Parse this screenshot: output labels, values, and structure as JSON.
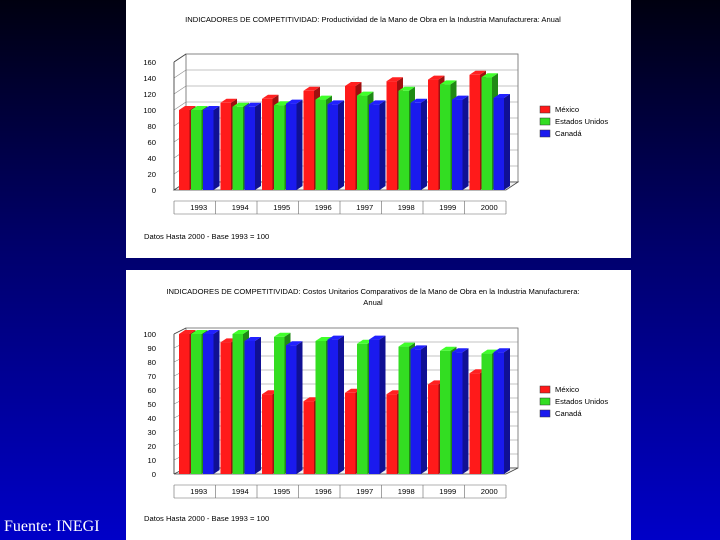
{
  "source_label": "Fuente: INEGI",
  "chart_data": [
    {
      "type": "bar",
      "title": "INDICADORES DE COMPETITIVIDAD: Productividad de la Mano de Obra en la Industria Manufacturera: Anual",
      "title_lines": [
        "INDICADORES DE COMPETITIVIDAD: Productividad de la Mano de Obra en la Industria Manufacturera: Anual"
      ],
      "categories": [
        "1993",
        "1994",
        "1995",
        "1996",
        "1997",
        "1998",
        "1999",
        "2000"
      ],
      "series": [
        {
          "name": "México",
          "color": "#ff1a1a",
          "values": [
            100,
            109,
            114,
            124,
            130,
            136,
            138,
            144
          ]
        },
        {
          "name": "Estados Unidos",
          "color": "#33dd22",
          "values": [
            100,
            104,
            106,
            113,
            118,
            124,
            132,
            141
          ]
        },
        {
          "name": "Canadá",
          "color": "#1a1aee",
          "values": [
            100,
            104,
            108,
            107,
            107,
            109,
            113,
            115
          ]
        }
      ],
      "yticks": [
        0,
        20,
        40,
        60,
        80,
        100,
        120,
        140,
        160
      ],
      "ylim": [
        0,
        160
      ],
      "footnote": "Datos Hasta 2000 - Base 1993 = 100",
      "legend_position": "right"
    },
    {
      "type": "bar",
      "title": "INDICADORES DE COMPETITIVIDAD: Costos Unitarios Comparativos de la Mano de Obra en la Industria Manufacturera: Anual",
      "title_lines": [
        "INDICADORES DE COMPETITIVIDAD: Costos Unitarios Comparativos de la Mano de Obra en la Industria Manufacturera:",
        "Anual"
      ],
      "categories": [
        "1993",
        "1994",
        "1995",
        "1996",
        "1997",
        "1998",
        "1999",
        "2000"
      ],
      "series": [
        {
          "name": "México",
          "color": "#ff1a1a",
          "values": [
            100,
            94,
            57,
            52,
            58,
            57,
            64,
            72
          ]
        },
        {
          "name": "Estados Unidos",
          "color": "#33dd22",
          "values": [
            100,
            100,
            98,
            95,
            93,
            91,
            88,
            86
          ]
        },
        {
          "name": "Canadá",
          "color": "#1a1aee",
          "values": [
            100,
            95,
            92,
            96,
            96,
            89,
            87,
            87
          ]
        }
      ],
      "yticks": [
        0,
        10,
        20,
        30,
        40,
        50,
        60,
        70,
        80,
        90,
        100
      ],
      "ylim": [
        0,
        100
      ],
      "footnote": "Datos Hasta 2000 - Base 1993 = 100",
      "legend_position": "right"
    }
  ]
}
